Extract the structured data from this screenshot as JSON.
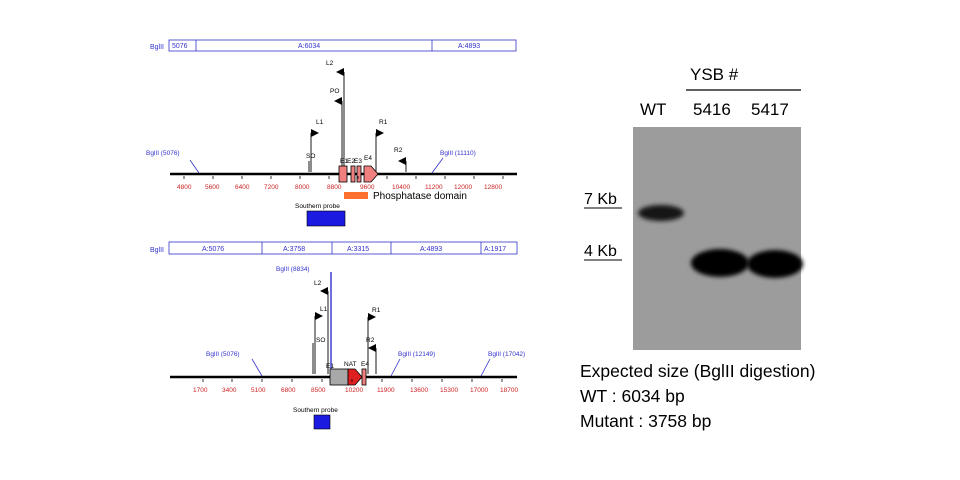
{
  "map_wt": {
    "segment_bar": {
      "left": "BglII",
      "cells": [
        "5076",
        "A:6034",
        "A:4893"
      ]
    },
    "restriction_sites": [
      "BglII (5076)",
      "BglII (11110)"
    ],
    "primers": [
      "L2",
      "PO",
      "L1",
      "SO",
      "R1",
      "R2"
    ],
    "exons": [
      "E1",
      "E2",
      "E3",
      "E4"
    ],
    "axis_ticks": [
      "4800",
      "5600",
      "6400",
      "7200",
      "8000",
      "8800",
      "9600",
      "10400",
      "11200",
      "12000",
      "12800"
    ],
    "domain_label": "Phosphatase domain",
    "probe_label": "Southern probe"
  },
  "map_mut": {
    "segment_bar": {
      "left": "BglII",
      "cells": [
        "A:5076",
        "A:3758",
        "A:3315",
        "A:4893",
        "A:1917"
      ]
    },
    "restriction_sites": [
      "BglII (8834)",
      "BglII (5076)",
      "BglII (12149)",
      "BglII (17042)"
    ],
    "primers": [
      "L2",
      "L1",
      "SO",
      "R1",
      "R2"
    ],
    "exons": [
      "E1",
      "NAT",
      "E4"
    ],
    "axis_ticks": [
      "1700",
      "3400",
      "5100",
      "6800",
      "8500",
      "10200",
      "11900",
      "13600",
      "15300",
      "17000",
      "18700"
    ],
    "probe_label": "Southern probe"
  },
  "gel": {
    "group_label": "YSB #",
    "lanes": [
      "WT",
      "5416",
      "5417"
    ],
    "markers": [
      "7 Kb",
      "4 Kb"
    ]
  },
  "notes": {
    "title": "Expected size (BglII digestion)",
    "lines": [
      "WT : 6034 bp",
      "Mutant : 3758 bp"
    ]
  }
}
